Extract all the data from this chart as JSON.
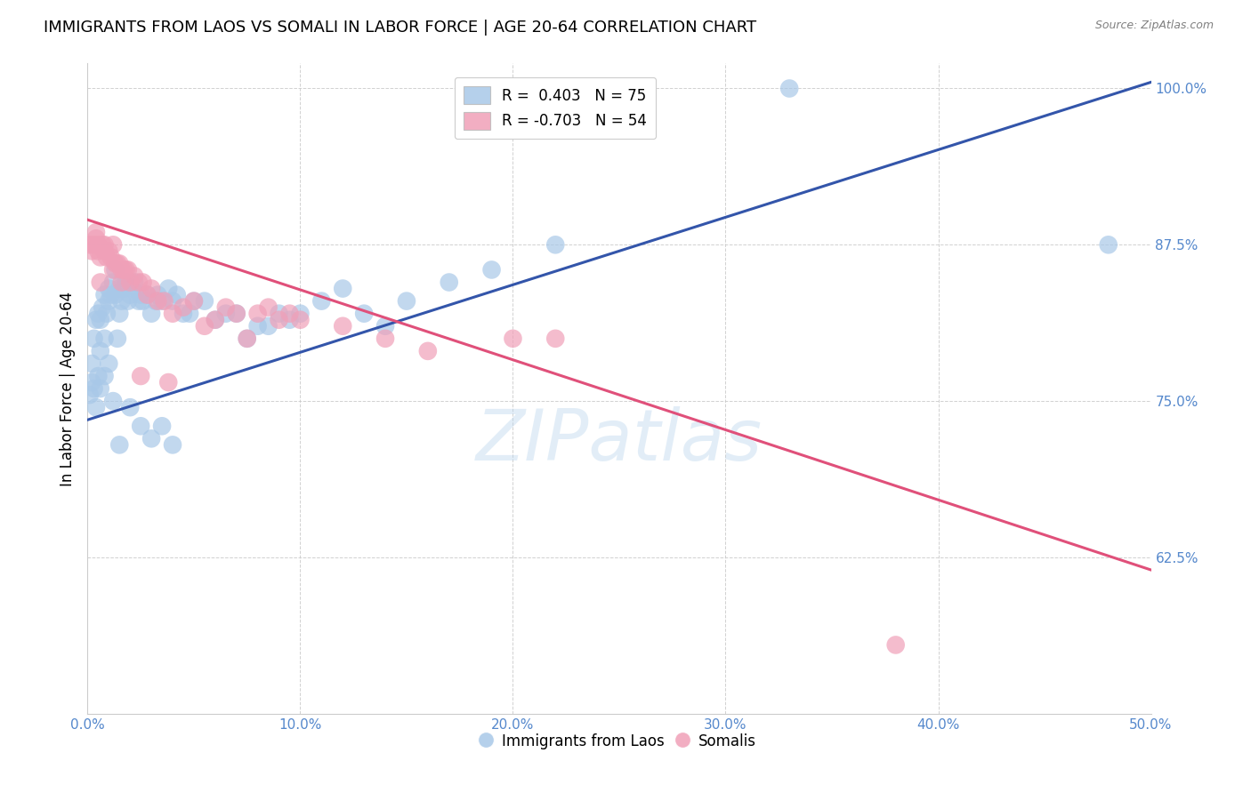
{
  "title": "IMMIGRANTS FROM LAOS VS SOMALI IN LABOR FORCE | AGE 20-64 CORRELATION CHART",
  "source": "Source: ZipAtlas.com",
  "ylabel": "In Labor Force | Age 20-64",
  "xlim": [
    0.0,
    0.5
  ],
  "ylim": [
    0.5,
    1.02
  ],
  "yticks": [
    0.625,
    0.75,
    0.875,
    1.0
  ],
  "ytick_labels": [
    "62.5%",
    "75.0%",
    "87.5%",
    "100.0%"
  ],
  "xticks": [
    0.0,
    0.1,
    0.2,
    0.3,
    0.4,
    0.5
  ],
  "xtick_labels": [
    "0.0%",
    "10.0%",
    "20.0%",
    "30.0%",
    "40.0%",
    "50.0%"
  ],
  "blue_color": "#A8C8E8",
  "pink_color": "#F0A0B8",
  "blue_line_color": "#3355AA",
  "pink_line_color": "#E0507A",
  "legend_bottom_blue": "Immigrants from Laos",
  "legend_bottom_pink": "Somalis",
  "watermark": "ZIPatlas",
  "tick_color": "#5588CC",
  "tick_fontsize": 11,
  "axis_label_fontsize": 12,
  "title_fontsize": 13,
  "blue_line_x": [
    0.0,
    0.5
  ],
  "blue_line_y": [
    0.735,
    1.005
  ],
  "pink_line_x": [
    0.0,
    0.5
  ],
  "pink_line_y": [
    0.895,
    0.615
  ],
  "blue_scatter_x": [
    0.002,
    0.003,
    0.003,
    0.004,
    0.005,
    0.005,
    0.006,
    0.006,
    0.007,
    0.008,
    0.008,
    0.009,
    0.01,
    0.01,
    0.011,
    0.012,
    0.013,
    0.013,
    0.014,
    0.015,
    0.015,
    0.016,
    0.017,
    0.018,
    0.019,
    0.02,
    0.021,
    0.022,
    0.024,
    0.025,
    0.026,
    0.028,
    0.03,
    0.032,
    0.033,
    0.035,
    0.038,
    0.04,
    0.042,
    0.045,
    0.048,
    0.05,
    0.055,
    0.06,
    0.065,
    0.07,
    0.075,
    0.08,
    0.085,
    0.09,
    0.095,
    0.1,
    0.11,
    0.12,
    0.13,
    0.14,
    0.15,
    0.17,
    0.19,
    0.22,
    0.001,
    0.002,
    0.004,
    0.006,
    0.008,
    0.01,
    0.012,
    0.015,
    0.02,
    0.025,
    0.03,
    0.035,
    0.04,
    0.33,
    0.48
  ],
  "blue_scatter_y": [
    0.78,
    0.8,
    0.76,
    0.815,
    0.77,
    0.82,
    0.79,
    0.815,
    0.825,
    0.8,
    0.835,
    0.82,
    0.83,
    0.84,
    0.835,
    0.845,
    0.835,
    0.855,
    0.8,
    0.82,
    0.84,
    0.83,
    0.84,
    0.845,
    0.83,
    0.835,
    0.84,
    0.845,
    0.83,
    0.835,
    0.83,
    0.835,
    0.82,
    0.83,
    0.835,
    0.83,
    0.84,
    0.83,
    0.835,
    0.82,
    0.82,
    0.83,
    0.83,
    0.815,
    0.82,
    0.82,
    0.8,
    0.81,
    0.81,
    0.82,
    0.815,
    0.82,
    0.83,
    0.84,
    0.82,
    0.81,
    0.83,
    0.845,
    0.855,
    0.875,
    0.755,
    0.765,
    0.745,
    0.76,
    0.77,
    0.78,
    0.75,
    0.715,
    0.745,
    0.73,
    0.72,
    0.73,
    0.715,
    1.0,
    0.875
  ],
  "pink_scatter_x": [
    0.001,
    0.002,
    0.003,
    0.004,
    0.005,
    0.005,
    0.006,
    0.007,
    0.008,
    0.009,
    0.01,
    0.011,
    0.012,
    0.013,
    0.014,
    0.015,
    0.016,
    0.017,
    0.018,
    0.019,
    0.02,
    0.022,
    0.024,
    0.026,
    0.028,
    0.03,
    0.033,
    0.036,
    0.04,
    0.045,
    0.05,
    0.055,
    0.06,
    0.065,
    0.07,
    0.075,
    0.08,
    0.085,
    0.09,
    0.095,
    0.1,
    0.12,
    0.14,
    0.16,
    0.2,
    0.22,
    0.004,
    0.006,
    0.008,
    0.012,
    0.016,
    0.025,
    0.038,
    0.38
  ],
  "pink_scatter_y": [
    0.875,
    0.87,
    0.875,
    0.88,
    0.875,
    0.87,
    0.865,
    0.875,
    0.87,
    0.865,
    0.87,
    0.865,
    0.855,
    0.86,
    0.86,
    0.86,
    0.855,
    0.855,
    0.855,
    0.855,
    0.845,
    0.85,
    0.845,
    0.845,
    0.835,
    0.84,
    0.83,
    0.83,
    0.82,
    0.825,
    0.83,
    0.81,
    0.815,
    0.825,
    0.82,
    0.8,
    0.82,
    0.825,
    0.815,
    0.82,
    0.815,
    0.81,
    0.8,
    0.79,
    0.8,
    0.8,
    0.885,
    0.845,
    0.875,
    0.875,
    0.845,
    0.77,
    0.765,
    0.555
  ]
}
